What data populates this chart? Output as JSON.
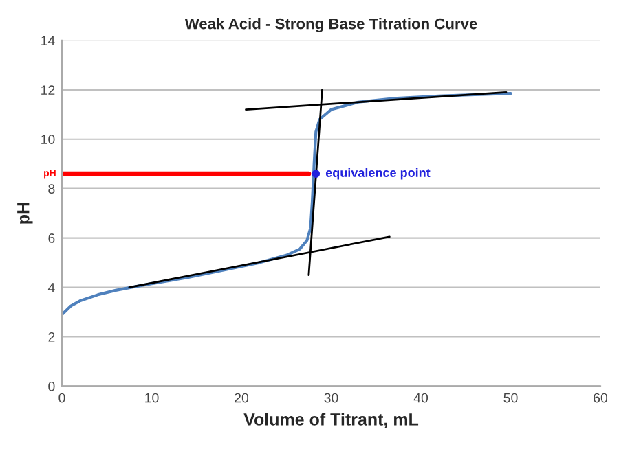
{
  "chart_data": {
    "type": "line",
    "title": "Weak Acid - Strong Base Titration Curve",
    "xlabel": "Volume of Titrant, mL",
    "ylabel": "pH",
    "series": [
      {
        "color": "#4f81bd",
        "x": [
          0,
          1,
          2,
          4,
          6,
          8,
          10,
          14,
          18,
          22,
          25,
          26.5,
          27.3,
          27.7,
          27.9,
          28.1,
          28.3,
          28.7,
          30,
          33,
          37,
          42,
          50
        ],
        "values": [
          2.9,
          3.25,
          3.45,
          3.7,
          3.88,
          4.02,
          4.15,
          4.4,
          4.7,
          5.0,
          5.3,
          5.55,
          5.9,
          6.4,
          7.5,
          9.0,
          10.3,
          10.8,
          11.2,
          11.5,
          11.65,
          11.75,
          11.85
        ]
      },
      {
        "color": "#000000",
        "x": [
          7.5,
          36.5
        ],
        "values": [
          4.0,
          6.05
        ]
      },
      {
        "color": "#000000",
        "x": [
          20.5,
          49.5
        ],
        "values": [
          11.2,
          11.9
        ]
      },
      {
        "color": "#000000",
        "x": [
          27.5,
          29
        ],
        "values": [
          4.5,
          12.0
        ]
      },
      {
        "color": "#ff0000",
        "x": [
          0,
          27.5
        ],
        "values": [
          8.6,
          8.6
        ]
      },
      {
        "type": "scatter",
        "color": "#2222dd",
        "x": [
          28.3
        ],
        "values": [
          8.6
        ]
      }
    ],
    "annotations": [
      {
        "text": "pH",
        "x": 0,
        "y": 8.6
      },
      {
        "text": "equivalence point",
        "x": 28.3,
        "y": 8.6
      }
    ],
    "xlim": [
      0,
      60
    ],
    "xticks": [
      0,
      10,
      20,
      30,
      40,
      50,
      60
    ],
    "ylim": [
      0,
      14
    ],
    "yticks": [
      0,
      2,
      4,
      6,
      8,
      10,
      12,
      14
    ],
    "grid": "y"
  }
}
